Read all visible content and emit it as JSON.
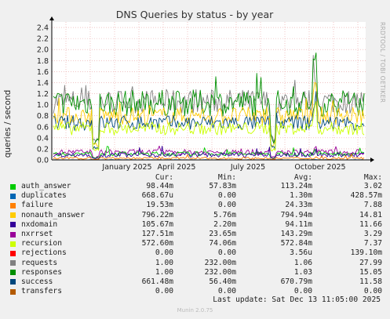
{
  "chart_data": {
    "type": "line",
    "title": "DNS Queries by status - by year",
    "ylabel": "queries / second",
    "side_label": "RRDTOOL / TOBI OETIKER",
    "y_ticks": [
      "0.0",
      "0.2",
      "0.4",
      "0.6",
      "0.8",
      "1.0",
      "1.2",
      "1.4",
      "1.6",
      "1.8",
      "2.0",
      "2.2",
      "2.4"
    ],
    "ylim": [
      0,
      2.5
    ],
    "x_ticks": [
      "January 2025",
      "April 2025",
      "July 2025",
      "October 2025"
    ],
    "columns": [
      "Cur:",
      "Min:",
      "Avg:",
      "Max:"
    ],
    "series": [
      {
        "name": "auth_answer",
        "color": "#00cc00",
        "cur": "98.44m",
        "min": "57.83m",
        "avg": "113.24m",
        "max": "3.02"
      },
      {
        "name": "duplicates",
        "color": "#0066b3",
        "cur": "668.67u",
        "min": "0.00",
        "avg": "1.30m",
        "max": "428.57m"
      },
      {
        "name": "failure",
        "color": "#ff8000",
        "cur": "19.53m",
        "min": "0.00",
        "avg": "24.33m",
        "max": "7.88"
      },
      {
        "name": "nonauth_answer",
        "color": "#ffcc00",
        "cur": "796.22m",
        "min": "5.76m",
        "avg": "794.94m",
        "max": "14.81"
      },
      {
        "name": "nxdomain",
        "color": "#330099",
        "cur": "105.67m",
        "min": "2.20m",
        "avg": "94.11m",
        "max": "11.66"
      },
      {
        "name": "nxrrset",
        "color": "#990099",
        "cur": "127.51m",
        "min": "23.65m",
        "avg": "143.29m",
        "max": "3.29"
      },
      {
        "name": "recursion",
        "color": "#ccff00",
        "cur": "572.60m",
        "min": "74.06m",
        "avg": "572.84m",
        "max": "7.37"
      },
      {
        "name": "rejections",
        "color": "#ff0000",
        "cur": "0.00",
        "min": "0.00",
        "avg": "3.56u",
        "max": "139.10m"
      },
      {
        "name": "requests",
        "color": "#808080",
        "cur": "1.00",
        "min": "232.00m",
        "avg": "1.06",
        "max": "27.99"
      },
      {
        "name": "responses",
        "color": "#008f00",
        "cur": "1.00",
        "min": "232.00m",
        "avg": "1.03",
        "max": "15.05"
      },
      {
        "name": "success",
        "color": "#00487d",
        "cur": "661.48m",
        "min": "56.40m",
        "avg": "670.79m",
        "max": "11.58"
      },
      {
        "name": "transfers",
        "color": "#b35a00",
        "cur": "0.00",
        "min": "0.00",
        "avg": "0.00",
        "max": "0.00"
      }
    ]
  },
  "last_update": "Last update: Sat Dec 13 11:05:00 2025",
  "munin_version": "Munin 2.0.75"
}
